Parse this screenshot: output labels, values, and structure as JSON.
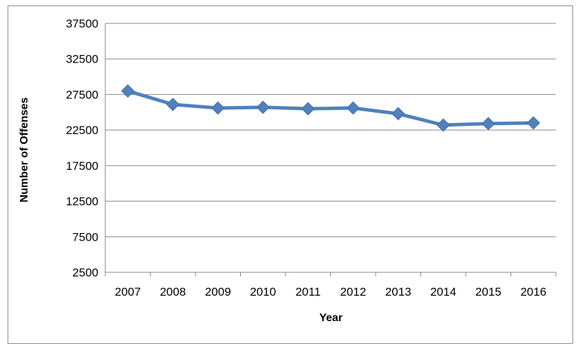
{
  "chart_data": {
    "type": "line",
    "title": "",
    "xlabel": "Year",
    "ylabel": "Number of Offenses",
    "categories": [
      "2007",
      "2008",
      "2009",
      "2010",
      "2011",
      "2012",
      "2013",
      "2014",
      "2015",
      "2016"
    ],
    "series": [
      {
        "values": [
          28000,
          26100,
          25600,
          25700,
          25500,
          25600,
          24800,
          23200,
          23400,
          23500
        ],
        "color": "#4f81bd"
      }
    ],
    "y_ticks": [
      "2500",
      "7500",
      "12500",
      "17500",
      "22500",
      "27500",
      "32500",
      "37500"
    ],
    "ylim": [
      2500,
      37500
    ],
    "grid": true,
    "legend": "none",
    "marker": "diamond"
  }
}
